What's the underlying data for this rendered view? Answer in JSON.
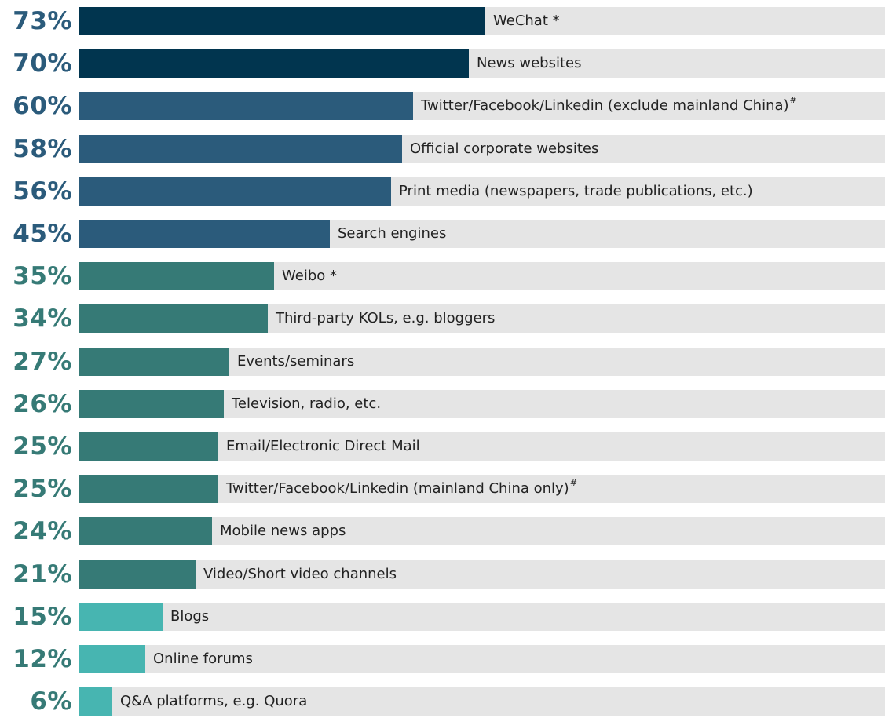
{
  "chart_data": {
    "type": "bar",
    "orientation": "horizontal",
    "xlim": [
      0,
      100
    ],
    "grid": false,
    "legend": "none",
    "categories": [
      "WeChat *",
      "News websites",
      "Twitter/Facebook/Linkedin (exclude mainland China)",
      "Official corporate websites",
      "Print media (newspapers, trade publications, etc.)",
      "Search engines",
      "Weibo *",
      "Third-party KOLs, e.g. bloggers",
      "Events/seminars",
      "Television, radio, etc.",
      "Email/Electronic Direct Mail",
      "Twitter/Facebook/Linkedin (mainland China only)",
      "Mobile news apps",
      "Video/Short video channels",
      "Blogs",
      "Online forums",
      "Q&A platforms, e.g. Quora"
    ],
    "superscripts": [
      "",
      "",
      "#",
      "",
      "",
      "",
      "",
      "",
      "",
      "",
      "",
      "#",
      "",
      "",
      "",
      "",
      ""
    ],
    "values": [
      73,
      70,
      60,
      58,
      56,
      45,
      35,
      34,
      27,
      26,
      25,
      25,
      24,
      21,
      15,
      12,
      6
    ],
    "value_labels": [
      "73%",
      "70%",
      "60%",
      "58%",
      "56%",
      "45%",
      "35%",
      "34%",
      "27%",
      "26%",
      "25%",
      "25%",
      "24%",
      "21%",
      "15%",
      "12%",
      "6%"
    ],
    "bar_colors": [
      "#01354f",
      "#01354f",
      "#2b5b7b",
      "#2b5b7b",
      "#2b5b7b",
      "#2b5b7b",
      "#367a76",
      "#367a76",
      "#367a76",
      "#367a76",
      "#367a76",
      "#367a76",
      "#367a76",
      "#367a76",
      "#47b5b1",
      "#47b5b1",
      "#47b5b1"
    ],
    "percent_colors": [
      "#2b5b7b",
      "#2b5b7b",
      "#2b5b7b",
      "#2b5b7b",
      "#2b5b7b",
      "#2b5b7b",
      "#367a76",
      "#367a76",
      "#367a76",
      "#367a76",
      "#367a76",
      "#367a76",
      "#367a76",
      "#367a76",
      "#367a76",
      "#367a76",
      "#367a76"
    ],
    "track_color": "#e5e5e5",
    "title": "",
    "xlabel": "",
    "ylabel": ""
  }
}
